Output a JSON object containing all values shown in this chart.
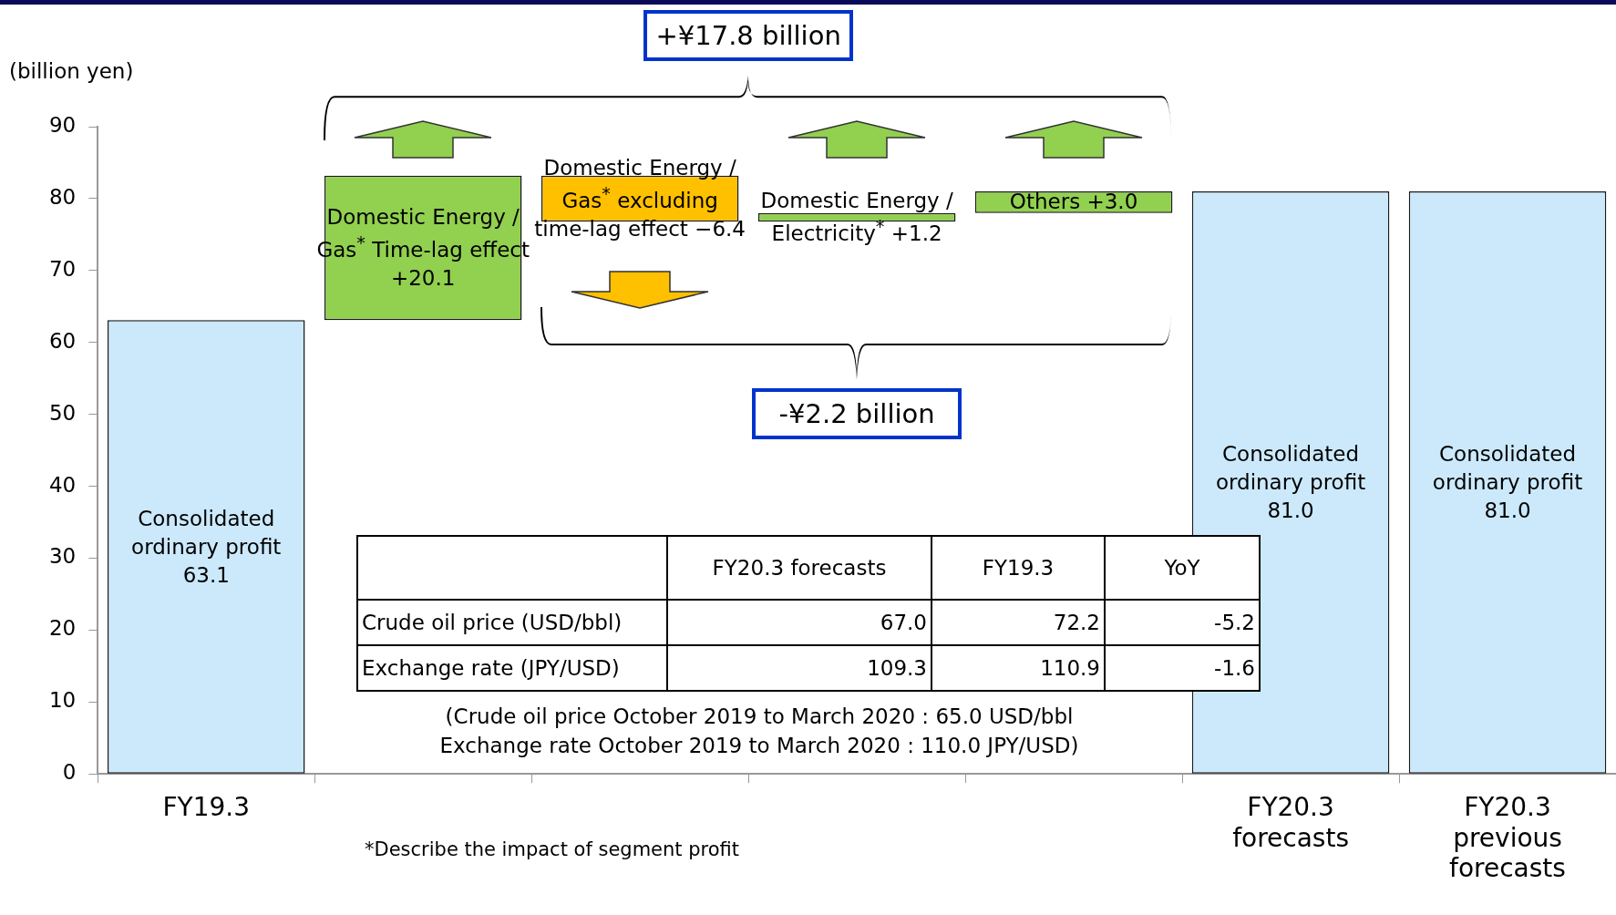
{
  "chart_data": {
    "type": "bar",
    "ylabel": "(billion yen)",
    "categories": [
      "FY19.3",
      null,
      null,
      null,
      null,
      "FY20.3 forecasts",
      "FY20.3 previous forecasts"
    ],
    "values": [
      63.1,
      20.1,
      -6.4,
      1.2,
      3.0,
      81.0,
      81.0
    ],
    "base": [
      0,
      63.1,
      83.2,
      76.8,
      78.0,
      0,
      0
    ],
    "colors": [
      "#cce9fb",
      "#92d050",
      "#ffc000",
      "#92d050",
      "#92d050",
      "#cce9fb",
      "#cce9fb"
    ],
    "value_labels": [
      "Consolidated ordinary profit 63.1",
      "Domestic Energy / Gas$^{*}$ Time-lag effect +20.1",
      "Domestic Energy / Gas$^{*}$ excluding time-lag effect −6.4",
      "Domestic Energy / Electricity$^{*}$ +1.2",
      "Others +3.0",
      "Consolidated ordinary profit 81.0",
      "Consolidated ordinary profit 81.0"
    ],
    "ylim": [
      0,
      90
    ],
    "yticks": [
      0,
      10,
      20,
      30,
      40,
      50,
      60,
      70,
      80,
      90
    ],
    "annotations": [
      "+¥17.8 billion",
      "-¥2.2 billion",
      "FY20.3 forecasts",
      "FY19.3",
      "YoY",
      "Crude oil price (USD/bbl)",
      "67.0",
      "72.2",
      "-5.2",
      "Exchange rate (JPY/USD)",
      "109.3",
      "110.9",
      "-1.6",
      "(Crude oil price October 2019 to March 2020 : 65.0 USD/bbl",
      "Exchange rate October 2019 to March 2020 : 110.0 JPY/USD)",
      "*Describe the impact of segment profit"
    ]
  }
}
